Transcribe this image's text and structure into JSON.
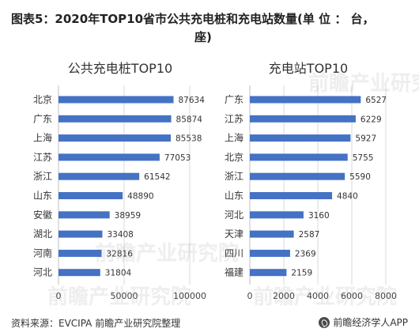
{
  "title_line1": "图表5：2020年TOP10省市公共充电桩和充电站数量(单 位 ： 台，",
  "title_line2": "座)",
  "footer": {
    "source": "资料来源：EVCIPA 前瞻产业研究院整理",
    "brand": "前瞻经济学人APP"
  },
  "watermark": "前瞻产业研究院",
  "colors": {
    "bar": "#4472c4",
    "grid": "#d9d9d9"
  },
  "chart_data": [
    {
      "type": "bar",
      "orientation": "horizontal",
      "title": "公共充电桩TOP10",
      "categories": [
        "北京",
        "广东",
        "上海",
        "江苏",
        "浙江",
        "山东",
        "安徽",
        "湖北",
        "河南",
        "河北"
      ],
      "values": [
        87634,
        85874,
        85538,
        77053,
        61542,
        48890,
        38959,
        33408,
        32816,
        31804
      ],
      "xlim": [
        0,
        100000
      ],
      "xticks": [
        "0",
        "50000",
        "100000"
      ],
      "grid": true
    },
    {
      "type": "bar",
      "orientation": "horizontal",
      "title": "充电站TOP10",
      "categories": [
        "广东",
        "江苏",
        "上海",
        "北京",
        "浙江",
        "山东",
        "河北",
        "天津",
        "四川",
        "福建"
      ],
      "values": [
        6527,
        6229,
        5927,
        5755,
        5590,
        4840,
        3160,
        2587,
        2369,
        2159
      ],
      "xlim": [
        0,
        8000
      ],
      "xticks": [
        "0",
        "2000",
        "4000",
        "6000",
        "8000"
      ],
      "grid": true
    }
  ]
}
